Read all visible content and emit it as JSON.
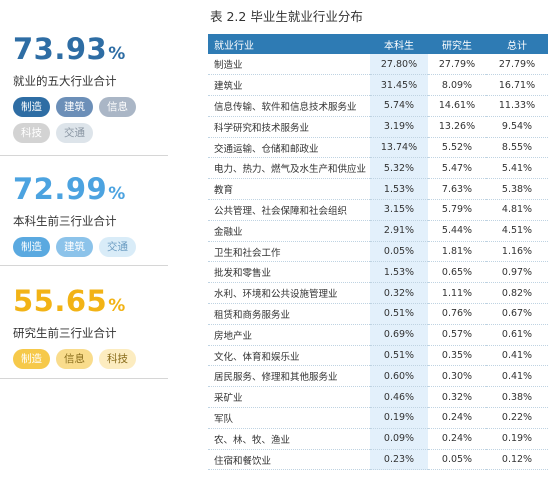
{
  "stats": [
    {
      "value": "73.93",
      "pct": "%",
      "color": "#2e6da4",
      "desc": "就业的五大行业合计",
      "tags": [
        {
          "label": "制造",
          "bg": "#2e6da4",
          "fg": "#ffffff"
        },
        {
          "label": "建筑",
          "bg": "#6c8fb8",
          "fg": "#ffffff"
        },
        {
          "label": "信息",
          "bg": "#aab6c6",
          "fg": "#ffffff"
        },
        {
          "label": "科技",
          "bg": "#d3d3d3",
          "fg": "#ffffff"
        },
        {
          "label": "交通",
          "bg": "#dde4ea",
          "fg": "#8a96a3"
        }
      ]
    },
    {
      "value": "72.99",
      "pct": "%",
      "color": "#4ca3e0",
      "desc": "本科生前三行业合计",
      "tags": [
        {
          "label": "制造",
          "bg": "#5aa9e0",
          "fg": "#ffffff"
        },
        {
          "label": "建筑",
          "bg": "#8cc3ea",
          "fg": "#ffffff"
        },
        {
          "label": "交通",
          "bg": "#d9ecf8",
          "fg": "#6b9cc2"
        }
      ]
    },
    {
      "value": "55.65",
      "pct": "%",
      "color": "#f2b316",
      "desc": "研究生前三行业合计",
      "tags": [
        {
          "label": "制造",
          "bg": "#f6c94a",
          "fg": "#ffffff"
        },
        {
          "label": "信息",
          "bg": "#f9dc8c",
          "fg": "#8a6d1c"
        },
        {
          "label": "科技",
          "bg": "#fcecc0",
          "fg": "#8a6d1c"
        }
      ]
    }
  ],
  "table": {
    "title": "表 2.2 毕业生就业行业分布",
    "headers": [
      "就业行业",
      "本科生",
      "研究生",
      "总计"
    ],
    "rows": [
      [
        "制造业",
        "27.80%",
        "27.79%",
        "27.79%"
      ],
      [
        "建筑业",
        "31.45%",
        "8.09%",
        "16.71%"
      ],
      [
        "信息传输、软件和信息技术服务业",
        "5.74%",
        "14.61%",
        "11.33%"
      ],
      [
        "科学研究和技术服务业",
        "3.19%",
        "13.26%",
        "9.54%"
      ],
      [
        "交通运输、仓储和邮政业",
        "13.74%",
        "5.52%",
        "8.55%"
      ],
      [
        "电力、热力、燃气及水生产和供应业",
        "5.32%",
        "5.47%",
        "5.41%"
      ],
      [
        "教育",
        "1.53%",
        "7.63%",
        "5.38%"
      ],
      [
        "公共管理、社会保障和社会组织",
        "3.15%",
        "5.79%",
        "4.81%"
      ],
      [
        "金融业",
        "2.91%",
        "5.44%",
        "4.51%"
      ],
      [
        "卫生和社会工作",
        "0.05%",
        "1.81%",
        "1.16%"
      ],
      [
        "批发和零售业",
        "1.53%",
        "0.65%",
        "0.97%"
      ],
      [
        "水利、环境和公共设施管理业",
        "0.32%",
        "1.11%",
        "0.82%"
      ],
      [
        "租赁和商务服务业",
        "0.51%",
        "0.76%",
        "0.67%"
      ],
      [
        "房地产业",
        "0.69%",
        "0.57%",
        "0.61%"
      ],
      [
        "文化、体育和娱乐业",
        "0.51%",
        "0.35%",
        "0.41%"
      ],
      [
        "居民服务、修理和其他服务业",
        "0.60%",
        "0.30%",
        "0.41%"
      ],
      [
        "采矿业",
        "0.46%",
        "0.32%",
        "0.38%"
      ],
      [
        "军队",
        "0.19%",
        "0.24%",
        "0.22%"
      ],
      [
        "农、林、牧、渔业",
        "0.09%",
        "0.24%",
        "0.19%"
      ],
      [
        "住宿和餐饮业",
        "0.23%",
        "0.05%",
        "0.12%"
      ]
    ]
  }
}
